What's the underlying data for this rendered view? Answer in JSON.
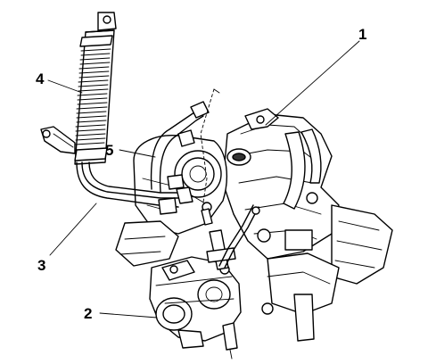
{
  "callouts": [
    {
      "id": "c1",
      "label": "1"
    },
    {
      "id": "c2",
      "label": "2"
    },
    {
      "id": "c3",
      "label": "3"
    },
    {
      "id": "c4",
      "label": "4"
    },
    {
      "id": "c5",
      "label": "5"
    }
  ]
}
